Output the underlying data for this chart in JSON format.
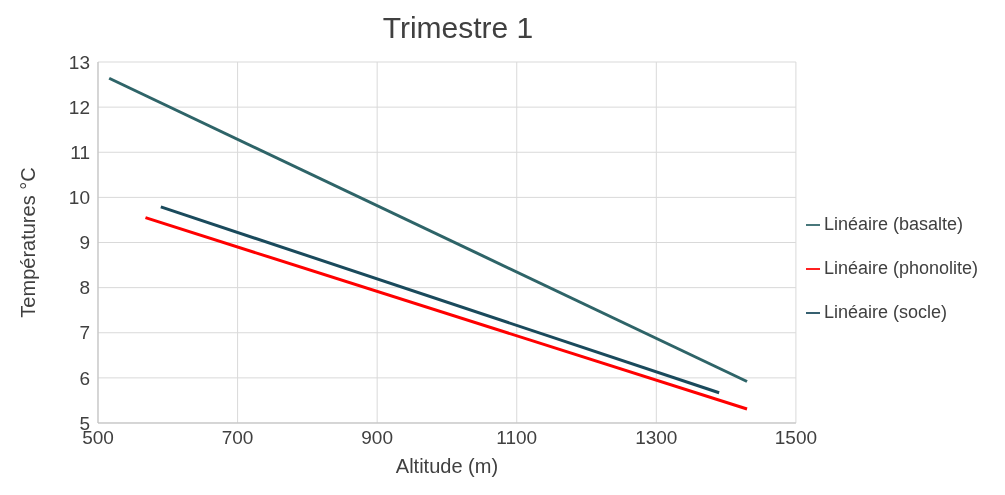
{
  "chart_data": {
    "type": "line",
    "title": "Trimestre 1",
    "xlabel": "Altitude (m)",
    "ylabel": "Températures °C",
    "xlim": [
      500,
      1500
    ],
    "xticks": [
      500,
      700,
      900,
      1100,
      1300,
      1500
    ],
    "ylim": [
      5,
      13
    ],
    "yticks": [
      5,
      6,
      7,
      8,
      9,
      10,
      11,
      12,
      13
    ],
    "grid": true,
    "legend": "right",
    "marker": "none",
    "line_style": "solid",
    "series": [
      {
        "name": "Linéaire (basalte)",
        "color": "#2e6468",
        "x": [
          516,
          1430
        ],
        "values": [
          12.64,
          5.92
        ]
      },
      {
        "name": "Linéaire (phonolite)",
        "color": "#ff0000",
        "x": [
          568,
          1430
        ],
        "values": [
          9.55,
          5.31
        ]
      },
      {
        "name": "Linéaire (socle)",
        "color": "#1a4a5c",
        "x": [
          590,
          1390
        ],
        "values": [
          9.79,
          5.67
        ]
      }
    ]
  }
}
